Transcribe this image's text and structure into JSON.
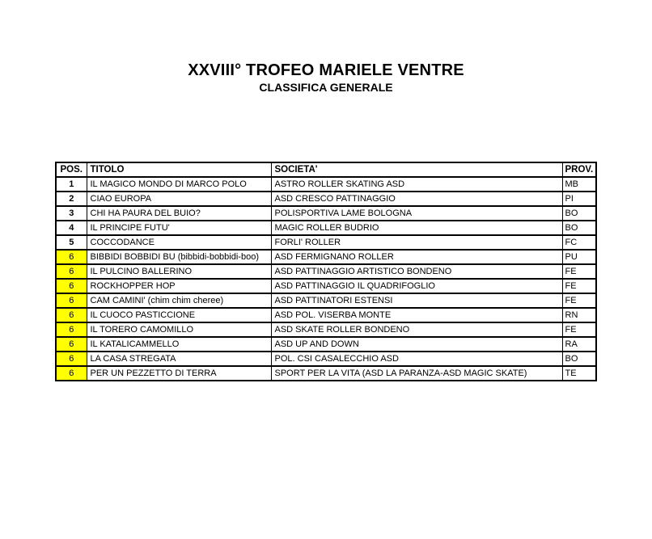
{
  "page": {
    "title": "XXVIII° TROFEO MARIELE VENTRE",
    "subtitle": "CLASSIFICA GENERALE"
  },
  "table": {
    "columns": [
      "POS.",
      "TITOLO",
      "SOCIETA'",
      "PROV."
    ],
    "highlight_color": "#FFFF00",
    "rows": [
      {
        "pos": "1",
        "titolo": "IL MAGICO MONDO DI MARCO POLO",
        "societa": "ASTRO ROLLER SKATING ASD",
        "prov": "MB",
        "highlight": false
      },
      {
        "pos": "2",
        "titolo": "CIAO EUROPA",
        "societa": "ASD CRESCO PATTINAGGIO",
        "prov": "PI",
        "highlight": false
      },
      {
        "pos": "3",
        "titolo": "CHI HA PAURA DEL BUIO?",
        "societa": "POLISPORTIVA LAME BOLOGNA",
        "prov": "BO",
        "highlight": false
      },
      {
        "pos": "4",
        "titolo": "IL PRINCIPE FUTU'",
        "societa": "MAGIC ROLLER BUDRIO",
        "prov": "BO",
        "highlight": false
      },
      {
        "pos": "5",
        "titolo": "COCCODANCE",
        "societa": "FORLI' ROLLER",
        "prov": "FC",
        "highlight": false
      },
      {
        "pos": "6",
        "titolo": "BIBBIDI BOBBIDI BU (bibbidi-bobbidi-boo)",
        "societa": "ASD FERMIGNANO ROLLER",
        "prov": "PU",
        "highlight": true
      },
      {
        "pos": "6",
        "titolo": "IL PULCINO BALLERINO",
        "societa": "ASD PATTINAGGIO ARTISTICO BONDENO",
        "prov": "FE",
        "highlight": true
      },
      {
        "pos": "6",
        "titolo": "ROCKHOPPER HOP",
        "societa": "ASD PATTINAGGIO IL QUADRIFOGLIO",
        "prov": "FE",
        "highlight": true
      },
      {
        "pos": "6",
        "titolo": "CAM CAMINI' (chim chim cheree)",
        "societa": "ASD PATTINATORI ESTENSI",
        "prov": "FE",
        "highlight": true
      },
      {
        "pos": "6",
        "titolo": "IL CUOCO PASTICCIONE",
        "societa": "ASD POL. VISERBA MONTE",
        "prov": "RN",
        "highlight": true
      },
      {
        "pos": "6",
        "titolo": "IL TORERO CAMOMILLO",
        "societa": "ASD SKATE ROLLER BONDENO",
        "prov": "FE",
        "highlight": true
      },
      {
        "pos": "6",
        "titolo": "IL KATALICAMMELLO",
        "societa": "ASD UP AND DOWN",
        "prov": "RA",
        "highlight": true
      },
      {
        "pos": "6",
        "titolo": "LA CASA STREGATA",
        "societa": "POL. CSI CASALECCHIO ASD",
        "prov": "BO",
        "highlight": true
      },
      {
        "pos": "6",
        "titolo": "PER UN PEZZETTO DI TERRA",
        "societa": "SPORT PER LA VITA (ASD LA PARANZA-ASD MAGIC SKATE)",
        "prov": "TE",
        "highlight": true
      }
    ]
  }
}
